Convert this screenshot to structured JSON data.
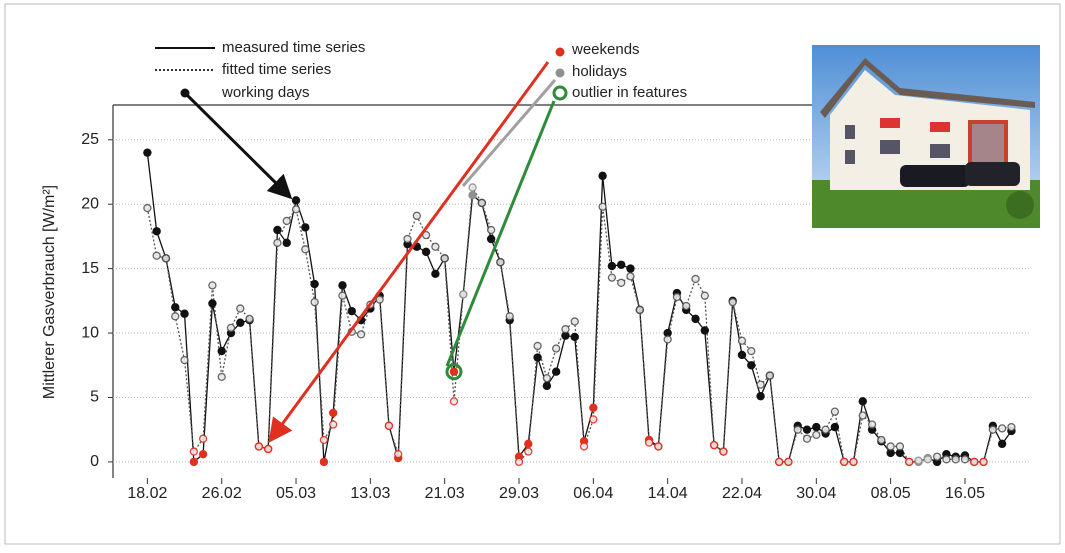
{
  "chart_data": {
    "type": "line",
    "ylabel": "Mittlerer Gasverbrauch [W/m²]",
    "xlim": [
      -3.7,
      95
    ],
    "ylim": [
      -1.25,
      27.7
    ],
    "xticks": [
      {
        "value": 0,
        "label": "18.02"
      },
      {
        "value": 8,
        "label": "26.02"
      },
      {
        "value": 16,
        "label": "05.03"
      },
      {
        "value": 24,
        "label": "13.03"
      },
      {
        "value": 32,
        "label": "21.03"
      },
      {
        "value": 40,
        "label": "29.03"
      },
      {
        "value": 48,
        "label": "06.04"
      },
      {
        "value": 56,
        "label": "14.04"
      },
      {
        "value": 64,
        "label": "22.04"
      },
      {
        "value": 72,
        "label": "30.04"
      },
      {
        "value": 80,
        "label": "08.05"
      },
      {
        "value": 88,
        "label": "16.05"
      }
    ],
    "yticks": [
      0,
      5,
      10,
      15,
      20,
      25
    ],
    "grid": true,
    "x": [
      0,
      1,
      2,
      3,
      4,
      5,
      6,
      7,
      8,
      9,
      10,
      11,
      12,
      13,
      14,
      15,
      16,
      17,
      18,
      19,
      20,
      21,
      22,
      23,
      24,
      25,
      26,
      27,
      28,
      29,
      30,
      31,
      32,
      33,
      34,
      35,
      36,
      37,
      38,
      39,
      40,
      41,
      42,
      43,
      44,
      45,
      46,
      47,
      48,
      49,
      50,
      51,
      52,
      53,
      54,
      55,
      56,
      57,
      58,
      59,
      60,
      61,
      62,
      63,
      64,
      65,
      66,
      67,
      68,
      69,
      70,
      71,
      72,
      73,
      74,
      75,
      76,
      77,
      78,
      79,
      80,
      81,
      82,
      83,
      84,
      85,
      86,
      87,
      88,
      89,
      90,
      91,
      92,
      93
    ],
    "series": [
      {
        "name": "measured time series",
        "color": "#111111",
        "style": "solid",
        "values": [
          24,
          17.9,
          15.8,
          12,
          11.5,
          0,
          0.6,
          12.3,
          8.6,
          10,
          10.8,
          11,
          1.2,
          1,
          18,
          17,
          20.3,
          18.2,
          13.8,
          0,
          3.8,
          13.7,
          11.7,
          11,
          11.9,
          12.9,
          2.8,
          0.3,
          16.9,
          16.7,
          16.3,
          14.6,
          15.8,
          7,
          13,
          20.7,
          20.1,
          17.3,
          15.5,
          11,
          0.4,
          1.4,
          8.1,
          5.9,
          7,
          9.8,
          9.7,
          1.6,
          4.2,
          22.2,
          15.2,
          15.3,
          15,
          11.8,
          1.7,
          1.2,
          10,
          13.1,
          11.8,
          11.1,
          10.2,
          1.3,
          0.8,
          12.5,
          8.3,
          7.5,
          5.1,
          6.7,
          0,
          0,
          2.8,
          2.5,
          2.7,
          2.2,
          2.7,
          0,
          0,
          4.7,
          2.5,
          1.6,
          0.7,
          0.7,
          0,
          0,
          0.3,
          0,
          0.6,
          0.4,
          0.5,
          0,
          0,
          2.8,
          1.4,
          2.4
        ]
      },
      {
        "name": "fitted time series",
        "color": "#555555",
        "style": "dotted",
        "values": [
          19.7,
          16,
          15.8,
          11.3,
          7.9,
          0.8,
          1.8,
          13.7,
          6.6,
          10.4,
          11.9,
          11.1,
          1.2,
          1,
          17,
          18.7,
          19.6,
          16.5,
          12.4,
          1.7,
          2.9,
          12.9,
          10.1,
          9.9,
          12.2,
          12.6,
          2.8,
          0.6,
          17.3,
          19.1,
          17.6,
          16.7,
          15.8,
          4.7,
          13,
          21.3,
          20.1,
          18,
          15.5,
          11.3,
          0,
          0.8,
          9,
          6.5,
          8.8,
          10.3,
          10.9,
          1.2,
          3.3,
          19.8,
          14.3,
          13.9,
          14.4,
          11.8,
          1.5,
          1.2,
          9.5,
          12.8,
          12.1,
          14.2,
          12.9,
          1.3,
          0.8,
          12.4,
          9.4,
          8.6,
          6,
          6.7,
          0,
          0,
          2.5,
          1.8,
          2.1,
          2.5,
          3.9,
          0,
          0,
          3.6,
          2.9,
          1.7,
          1.2,
          1.2,
          0,
          0.1,
          0.2,
          0.4,
          0.2,
          0.2,
          0.2,
          0,
          0,
          2.5,
          2.6,
          2.7
        ]
      }
    ],
    "marker_colors": [
      "#111111",
      "#111111",
      "#111111",
      "#111111",
      "#111111",
      "#e03020",
      "#e03020",
      "#111111",
      "#111111",
      "#111111",
      "#111111",
      "#111111",
      "#e03020",
      "#e03020",
      "#111111",
      "#111111",
      "#111111",
      "#111111",
      "#111111",
      "#e03020",
      "#e03020",
      "#111111",
      "#111111",
      "#111111",
      "#111111",
      "#111111",
      "#e03020",
      "#e03020",
      "#111111",
      "#111111",
      "#111111",
      "#111111",
      "#111111",
      "#e03020",
      "#909090",
      "#909090",
      "#111111",
      "#111111",
      "#111111",
      "#111111",
      "#e03020",
      "#e03020",
      "#111111",
      "#111111",
      "#111111",
      "#111111",
      "#111111",
      "#e03020",
      "#e03020",
      "#111111",
      "#111111",
      "#111111",
      "#111111",
      "#111111",
      "#e03020",
      "#e03020",
      "#111111",
      "#111111",
      "#111111",
      "#111111",
      "#111111",
      "#e03020",
      "#e03020",
      "#111111",
      "#111111",
      "#111111",
      "#111111",
      "#111111",
      "#e03020",
      "#e03020",
      "#111111",
      "#111111",
      "#111111",
      "#111111",
      "#111111",
      "#e03020",
      "#e03020",
      "#111111",
      "#111111",
      "#111111",
      "#111111",
      "#111111",
      "#e03020",
      "#909090",
      "#909090",
      "#111111",
      "#111111",
      "#111111",
      "#111111",
      "#e03020",
      "#e03020",
      "#111111",
      "#111111",
      "#111111"
    ],
    "highlight": {
      "index": 33,
      "color": "#2e8b3a"
    },
    "marker_legend": [
      {
        "label": "working days",
        "color": "#111111"
      },
      {
        "label": "weekends",
        "color": "#e03020"
      },
      {
        "label": "holidays",
        "color": "#909090"
      },
      {
        "label": "outlier in features",
        "color": "#2e8b3a"
      }
    ]
  }
}
